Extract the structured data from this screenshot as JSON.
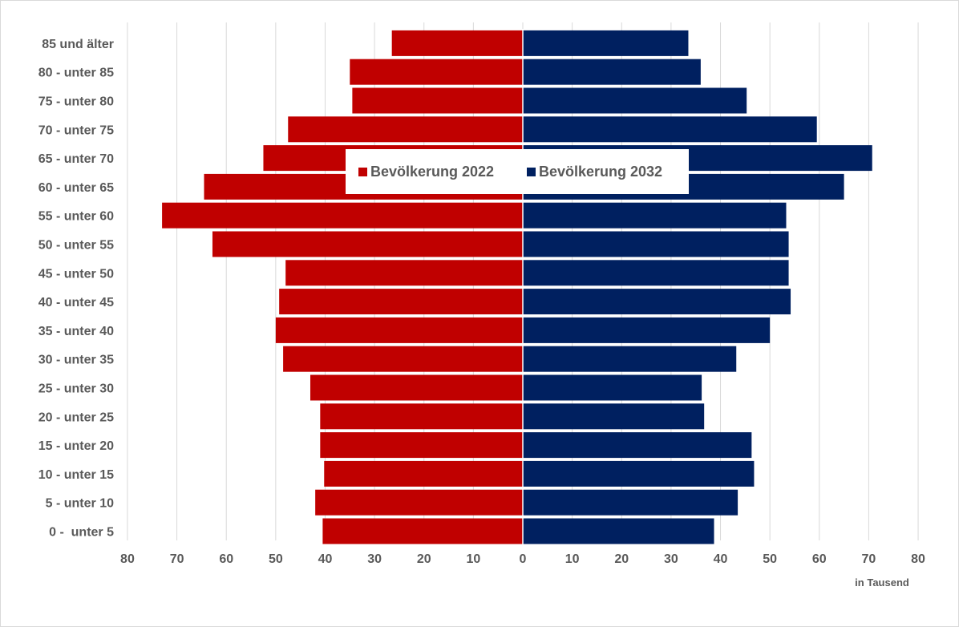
{
  "chart_data": {
    "type": "bar",
    "orientation": "horizontal",
    "subtype": "population-pyramid",
    "categories": [
      "85 und älter",
      "80 - unter 85",
      "75 - unter 80",
      "70 - unter 75",
      "65 - unter 70",
      "60 - unter 65",
      "55 - unter 60",
      "50 - unter 55",
      "45 - unter 50",
      "40 - unter 45",
      "35 - unter 40",
      "30 - unter 35",
      "25 - unter 30",
      "20 - unter 25",
      "15 - unter 20",
      "10 - unter 15",
      "5 - unter 10",
      "0 -  unter 5"
    ],
    "series": [
      {
        "name": "Bevölkerung 2022",
        "side": "left",
        "color": "#c00000",
        "values": [
          26.5,
          35,
          34.5,
          47.5,
          52.5,
          64.5,
          73,
          62.8,
          48,
          49.3,
          50,
          48.5,
          43,
          41,
          41,
          40.2,
          42,
          40.5
        ]
      },
      {
        "name": "Bevölkerung 2032",
        "side": "right",
        "color": "#002060",
        "values": [
          33.5,
          36,
          45.3,
          59.5,
          70.7,
          65,
          53.3,
          53.8,
          53.8,
          54.2,
          50,
          43.2,
          36.2,
          36.7,
          46.3,
          46.8,
          43.5,
          38.7
        ]
      }
    ],
    "xlim": [
      -80,
      80
    ],
    "xticks": [
      -80,
      -70,
      -60,
      -50,
      -40,
      -30,
      -20,
      -10,
      0,
      10,
      20,
      30,
      40,
      50,
      60,
      70,
      80
    ],
    "xtick_labels": [
      "80",
      "70",
      "60",
      "50",
      "40",
      "30",
      "20",
      "10",
      "0",
      "10",
      "20",
      "30",
      "40",
      "50",
      "60",
      "70",
      "80"
    ],
    "unit_label": "in Tausend",
    "grid": "vertical",
    "legend_position": "top-center",
    "legend": [
      "Bevölkerung 2022",
      "Bevölkerung 2032"
    ]
  }
}
